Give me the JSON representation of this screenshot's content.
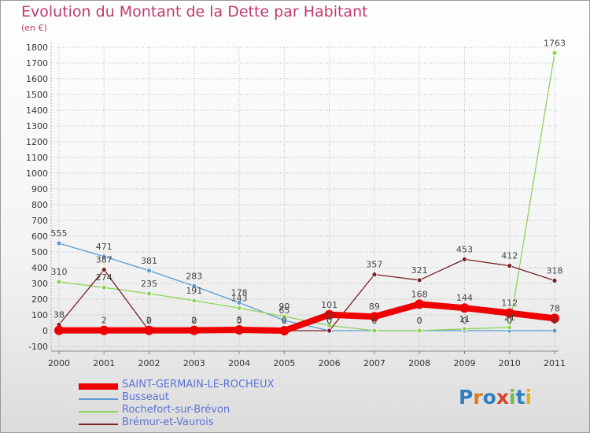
{
  "title": "Evolution du Montant de la Dette par Habitant",
  "subtitle": "(en €)",
  "logo_text": "Proxiti",
  "colors": {
    "title": "#c03a6a",
    "legend_text": "#5b73d6",
    "axis_text": "#333333",
    "grid": "#bbbbbb"
  },
  "chart_data": {
    "type": "line",
    "x": [
      "2000",
      "2001",
      "2002",
      "2003",
      "2004",
      "2005",
      "2006",
      "2007",
      "2008",
      "2009",
      "2010",
      "2011"
    ],
    "ylim": [
      -100,
      1800
    ],
    "yticks": [
      -100,
      0,
      100,
      200,
      300,
      400,
      500,
      600,
      700,
      800,
      900,
      1000,
      1100,
      1200,
      1300,
      1400,
      1500,
      1600,
      1700,
      1800
    ],
    "grid": true,
    "legend_position": "bottom-left",
    "series": [
      {
        "name": "SAINT-GERMAIN-LE-ROCHEUX",
        "color": "#ee0000",
        "values": [
          2,
          2,
          2,
          2,
          5,
          0,
          101,
          89,
          168,
          144,
          112,
          78
        ],
        "labels": [
          "",
          "2",
          "2",
          "2",
          "5",
          "0",
          "101",
          "89",
          "168",
          "144",
          "112",
          "78"
        ]
      },
      {
        "name": "Busseaut",
        "color": "#5b9bd5",
        "values": [
          555,
          471,
          381,
          283,
          178,
          65,
          0,
          0,
          0,
          0,
          0,
          0
        ],
        "labels": [
          "555",
          "471",
          "381",
          "283",
          "178",
          "65",
          "0",
          "0",
          "0",
          "0",
          "0",
          "0"
        ]
      },
      {
        "name": "Rochefort-sur-Brévon",
        "color": "#8ed45a",
        "values": [
          310,
          274,
          235,
          191,
          143,
          90,
          33,
          0,
          0,
          11,
          21,
          1763
        ],
        "labels": [
          "310",
          "274",
          "235",
          "191",
          "143",
          "90",
          "33",
          "0",
          "0",
          "11",
          "21",
          "1763"
        ]
      },
      {
        "name": "Brémur-et-Vaurois",
        "color": "#7b1f28",
        "values": [
          38,
          387,
          0,
          0,
          0,
          0,
          0,
          357,
          321,
          453,
          412,
          318
        ],
        "labels": [
          "38",
          "387",
          "0",
          "0",
          "0",
          "0",
          "0",
          "357",
          "321",
          "453",
          "412",
          "318"
        ]
      }
    ]
  }
}
